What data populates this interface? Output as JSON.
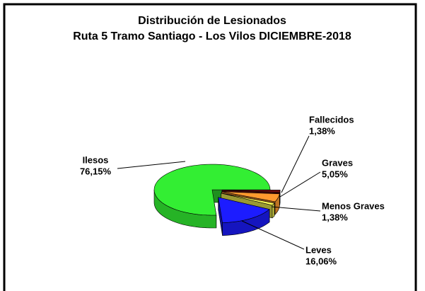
{
  "chart_data": {
    "type": "pie",
    "title": "Distribución de Lesionados",
    "subtitle": "Ruta 5 Tramo Santiago - Los Vilos DICIEMBRE-2018",
    "categories": [
      "Fallecidos",
      "Graves",
      "Menos Graves",
      "Leves",
      "Ilesos"
    ],
    "values": [
      1.38,
      5.05,
      1.38,
      16.06,
      76.15
    ],
    "value_labels": [
      "1,38%",
      "5,05%",
      "1,38%",
      "16,06%",
      "76,15%"
    ],
    "colors": [
      "#7a1010",
      "#ff9a2e",
      "#ffff55",
      "#1c1cff",
      "#33ee33"
    ]
  }
}
